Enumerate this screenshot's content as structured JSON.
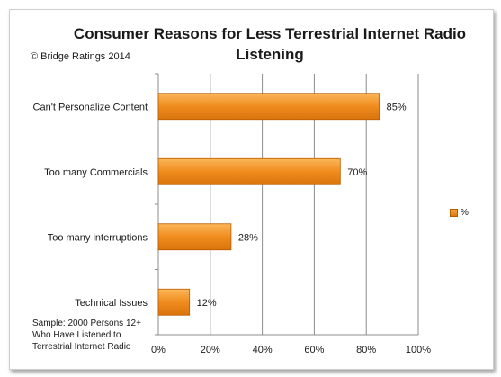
{
  "chart_data": {
    "type": "bar",
    "orientation": "horizontal",
    "title": "Consumer Reasons for Less Terrestrial Internet Radio Listening",
    "title_lines": [
      "Consumer Reasons for Less Terrestrial Internet Radio",
      "Listening"
    ],
    "copyright": "© Bridge Ratings 2014",
    "note_lines": [
      "Sample: 2000 Persons 12+",
      "Who Have Listened to",
      "Terrestrial Internet Radio"
    ],
    "categories": [
      "Can't Personalize Content",
      "Too many Commercials",
      "Too many interruptions",
      "Technical Issues"
    ],
    "series": [
      {
        "name": "%",
        "values": [
          85,
          70,
          28,
          12
        ],
        "labels": [
          "85%",
          "70%",
          "28%",
          "12%"
        ],
        "color": "#f08c1e"
      }
    ],
    "xlim": [
      0,
      100
    ],
    "xticks": [
      "0%",
      "20%",
      "40%",
      "60%",
      "80%",
      "100%"
    ],
    "grid": true,
    "legend": "right"
  }
}
